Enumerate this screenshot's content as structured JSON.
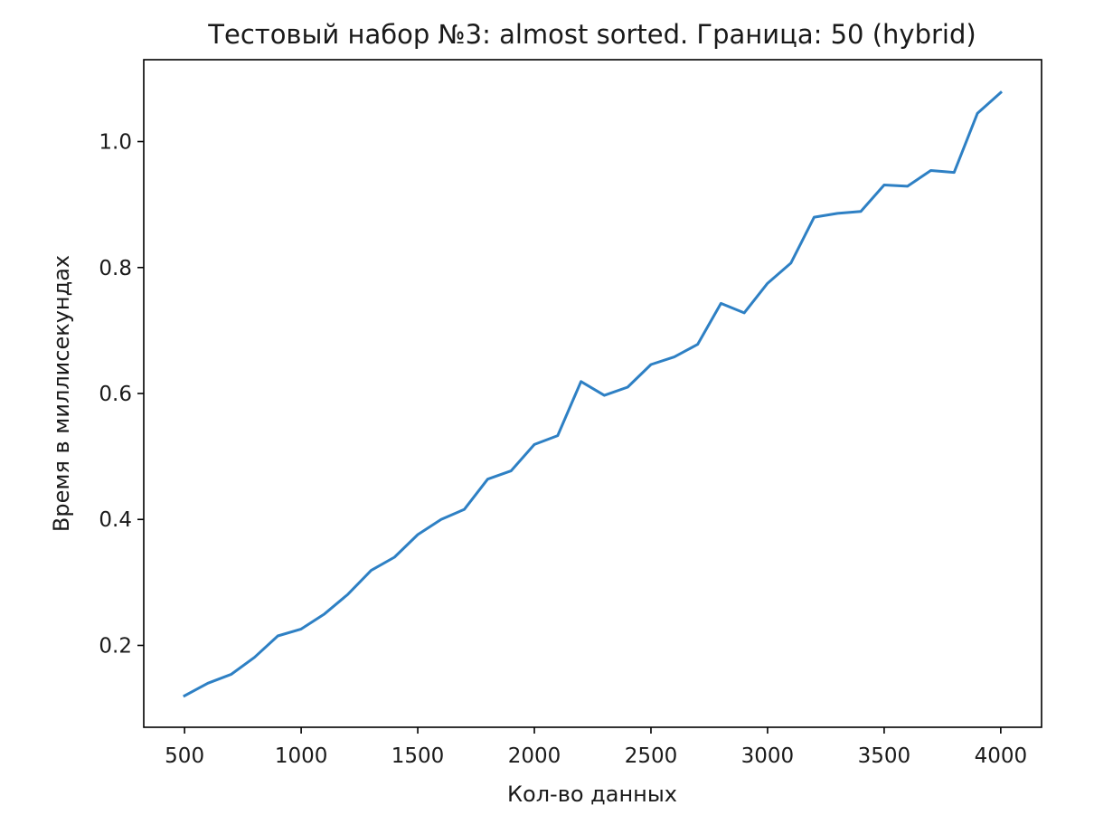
{
  "chart_data": {
    "type": "line",
    "title": "Тестовый набор №3: almost sorted. Граница: 50 (hybrid)",
    "xlabel": "Кол-во данных",
    "ylabel": "Время в миллисекундах",
    "xlim": [
      325,
      4175
    ],
    "ylim": [
      0.07,
      1.13
    ],
    "xticks": [
      500,
      1000,
      1500,
      2000,
      2500,
      3000,
      3500,
      4000
    ],
    "xtick_labels": [
      "500",
      "1000",
      "1500",
      "2000",
      "2500",
      "3000",
      "3500",
      "4000"
    ],
    "yticks": [
      0.2,
      0.4,
      0.6,
      0.8,
      1.0
    ],
    "ytick_labels": [
      "0.2",
      "0.4",
      "0.6",
      "0.8",
      "1.0"
    ],
    "grid": false,
    "line_color": "#2e80c4",
    "series": [
      {
        "x": [
          500,
          600,
          700,
          800,
          900,
          1000,
          1100,
          1200,
          1300,
          1400,
          1500,
          1600,
          1700,
          1800,
          1900,
          2000,
          2100,
          2200,
          2300,
          2400,
          2500,
          2600,
          2700,
          2800,
          2900,
          3000,
          3100,
          3200,
          3300,
          3400,
          3500,
          3600,
          3700,
          3800,
          3900,
          4000
        ],
        "values": [
          0.12,
          0.14,
          0.154,
          0.181,
          0.215,
          0.226,
          0.25,
          0.281,
          0.319,
          0.34,
          0.376,
          0.4,
          0.416,
          0.464,
          0.477,
          0.519,
          0.533,
          0.619,
          0.597,
          0.61,
          0.646,
          0.658,
          0.678,
          0.743,
          0.728,
          0.775,
          0.807,
          0.88,
          0.886,
          0.889,
          0.931,
          0.929,
          0.954,
          0.951,
          1.045,
          1.078
        ]
      }
    ]
  }
}
